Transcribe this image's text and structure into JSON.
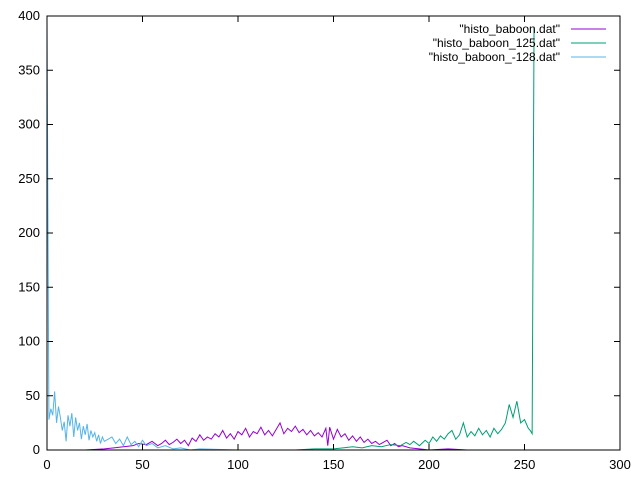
{
  "chart_data": {
    "type": "line",
    "title": "",
    "xlabel": "",
    "ylabel": "",
    "xlim": [
      0,
      300
    ],
    "ylim": [
      0,
      400
    ],
    "xticks": [
      0,
      50,
      100,
      150,
      200,
      250,
      300
    ],
    "yticks": [
      0,
      50,
      100,
      150,
      200,
      250,
      300,
      350,
      400
    ],
    "xtick_labels": [
      "0",
      "50",
      "100",
      "150",
      "200",
      "250",
      "300"
    ],
    "ytick_labels": [
      "0",
      "50",
      "100",
      "150",
      "200",
      "250",
      "300",
      "350",
      "400"
    ],
    "grid": false,
    "legend_position": "top-right",
    "series": [
      {
        "name": "\"histo_baboon.dat\"",
        "color": "#9400d3",
        "points": [
          [
            0,
            0
          ],
          [
            20,
            0
          ],
          [
            30,
            1
          ],
          [
            35,
            2
          ],
          [
            40,
            3
          ],
          [
            45,
            4
          ],
          [
            48,
            6
          ],
          [
            52,
            5
          ],
          [
            55,
            8
          ],
          [
            58,
            4
          ],
          [
            60,
            6
          ],
          [
            62,
            9
          ],
          [
            64,
            5
          ],
          [
            66,
            7
          ],
          [
            68,
            10
          ],
          [
            70,
            6
          ],
          [
            72,
            9
          ],
          [
            74,
            4
          ],
          [
            76,
            11
          ],
          [
            78,
            8
          ],
          [
            80,
            14
          ],
          [
            82,
            9
          ],
          [
            84,
            12
          ],
          [
            86,
            10
          ],
          [
            88,
            15
          ],
          [
            90,
            12
          ],
          [
            92,
            18
          ],
          [
            94,
            11
          ],
          [
            96,
            15
          ],
          [
            98,
            10
          ],
          [
            100,
            17
          ],
          [
            102,
            14
          ],
          [
            104,
            20
          ],
          [
            106,
            12
          ],
          [
            108,
            17
          ],
          [
            110,
            15
          ],
          [
            112,
            21
          ],
          [
            114,
            14
          ],
          [
            116,
            18
          ],
          [
            118,
            13
          ],
          [
            120,
            19
          ],
          [
            122,
            25
          ],
          [
            124,
            15
          ],
          [
            126,
            20
          ],
          [
            128,
            17
          ],
          [
            130,
            22
          ],
          [
            132,
            16
          ],
          [
            134,
            19
          ],
          [
            136,
            14
          ],
          [
            138,
            18
          ],
          [
            140,
            13
          ],
          [
            142,
            16
          ],
          [
            144,
            12
          ],
          [
            146,
            20
          ],
          [
            147,
            4
          ],
          [
            148,
            21
          ],
          [
            150,
            10
          ],
          [
            152,
            19
          ],
          [
            154,
            12
          ],
          [
            156,
            15
          ],
          [
            158,
            9
          ],
          [
            160,
            13
          ],
          [
            162,
            8
          ],
          [
            164,
            12
          ],
          [
            166,
            7
          ],
          [
            168,
            10
          ],
          [
            170,
            6
          ],
          [
            172,
            8
          ],
          [
            174,
            5
          ],
          [
            176,
            7
          ],
          [
            178,
            9
          ],
          [
            180,
            4
          ],
          [
            182,
            6
          ],
          [
            184,
            3
          ],
          [
            186,
            4
          ],
          [
            190,
            2
          ],
          [
            195,
            1
          ],
          [
            200,
            0
          ],
          [
            210,
            1
          ],
          [
            220,
            0
          ],
          [
            255,
            0
          ]
        ]
      },
      {
        "name": "\"histo_baboon_125.dat\"",
        "color": "#009e73",
        "points": [
          [
            0,
            0
          ],
          [
            100,
            0
          ],
          [
            130,
            0
          ],
          [
            140,
            1
          ],
          [
            150,
            1
          ],
          [
            155,
            2
          ],
          [
            160,
            3
          ],
          [
            165,
            2
          ],
          [
            170,
            4
          ],
          [
            175,
            3
          ],
          [
            180,
            5
          ],
          [
            185,
            4
          ],
          [
            188,
            7
          ],
          [
            190,
            5
          ],
          [
            192,
            8
          ],
          [
            195,
            4
          ],
          [
            198,
            9
          ],
          [
            200,
            6
          ],
          [
            202,
            12
          ],
          [
            204,
            8
          ],
          [
            206,
            13
          ],
          [
            208,
            10
          ],
          [
            210,
            15
          ],
          [
            212,
            18
          ],
          [
            214,
            10
          ],
          [
            216,
            14
          ],
          [
            218,
            25
          ],
          [
            220,
            12
          ],
          [
            222,
            17
          ],
          [
            224,
            13
          ],
          [
            226,
            20
          ],
          [
            228,
            14
          ],
          [
            230,
            18
          ],
          [
            232,
            12
          ],
          [
            234,
            20
          ],
          [
            236,
            15
          ],
          [
            238,
            19
          ],
          [
            240,
            25
          ],
          [
            242,
            42
          ],
          [
            244,
            30
          ],
          [
            246,
            45
          ],
          [
            248,
            25
          ],
          [
            250,
            28
          ],
          [
            252,
            20
          ],
          [
            253,
            18
          ],
          [
            254,
            15
          ],
          [
            255,
            390
          ]
        ]
      },
      {
        "name": "\"histo_baboon_-128.dat\"",
        "color": "#56b4e9",
        "points": [
          [
            0,
            395
          ],
          [
            1,
            28
          ],
          [
            2,
            38
          ],
          [
            3,
            32
          ],
          [
            4,
            54
          ],
          [
            5,
            25
          ],
          [
            6,
            40
          ],
          [
            7,
            30
          ],
          [
            8,
            18
          ],
          [
            9,
            26
          ],
          [
            10,
            8
          ],
          [
            11,
            32
          ],
          [
            12,
            22
          ],
          [
            13,
            34
          ],
          [
            14,
            12
          ],
          [
            15,
            30
          ],
          [
            16,
            18
          ],
          [
            17,
            25
          ],
          [
            18,
            10
          ],
          [
            19,
            22
          ],
          [
            20,
            14
          ],
          [
            21,
            24
          ],
          [
            22,
            9
          ],
          [
            23,
            18
          ],
          [
            24,
            12
          ],
          [
            25,
            16
          ],
          [
            26,
            8
          ],
          [
            27,
            14
          ],
          [
            28,
            6
          ],
          [
            29,
            12
          ],
          [
            30,
            8
          ],
          [
            32,
            10
          ],
          [
            34,
            12
          ],
          [
            36,
            6
          ],
          [
            38,
            10
          ],
          [
            40,
            4
          ],
          [
            42,
            12
          ],
          [
            44,
            5
          ],
          [
            46,
            8
          ],
          [
            48,
            3
          ],
          [
            50,
            9
          ],
          [
            52,
            4
          ],
          [
            55,
            6
          ],
          [
            58,
            2
          ],
          [
            62,
            4
          ],
          [
            66,
            1
          ],
          [
            70,
            2
          ],
          [
            75,
            0
          ],
          [
            80,
            1
          ],
          [
            100,
            0
          ],
          [
            150,
            0
          ],
          [
            180,
            0
          ],
          [
            255,
            0
          ]
        ]
      }
    ]
  }
}
